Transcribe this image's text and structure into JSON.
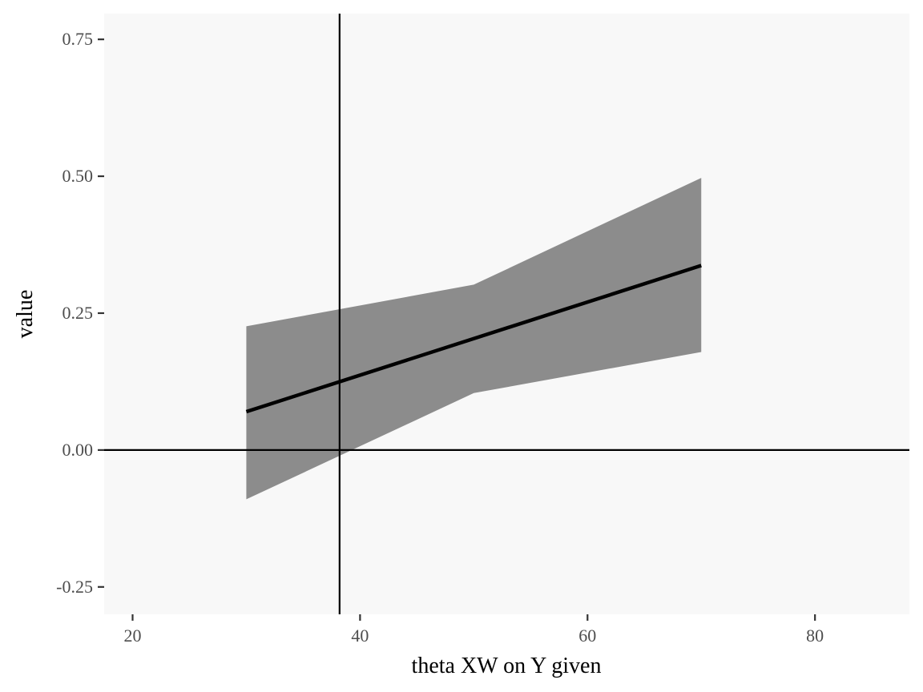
{
  "chart_data": {
    "type": "line",
    "xlabel": "theta XW on Y given",
    "ylabel": "value",
    "xlim": [
      17.5,
      88.3
    ],
    "ylim": [
      -0.3,
      0.797
    ],
    "x_ticks": [
      20,
      40,
      60,
      80
    ],
    "x_tick_labels": [
      "20",
      "40",
      "60",
      "80"
    ],
    "y_ticks": [
      -0.25,
      0.0,
      0.25,
      0.5,
      0.75
    ],
    "y_tick_labels": [
      "-0.25",
      "0.00",
      "0.25",
      "0.50",
      "0.75"
    ],
    "grid": false,
    "series": [
      {
        "x": [
          30,
          70
        ],
        "y": [
          0.07,
          0.337
        ],
        "color": "#000000"
      }
    ],
    "band": {
      "x": [
        30,
        50,
        70
      ],
      "upper": [
        0.226,
        0.302,
        0.497
      ],
      "lower": [
        -0.09,
        0.104,
        0.179
      ],
      "color": "#8c8c8c"
    },
    "reference_lines": {
      "vertical_x": 38.2,
      "horizontal_y": 0.0
    },
    "colors": {
      "panel_background": "#f8f8f8",
      "tick_text": "#4d4d4d"
    }
  }
}
